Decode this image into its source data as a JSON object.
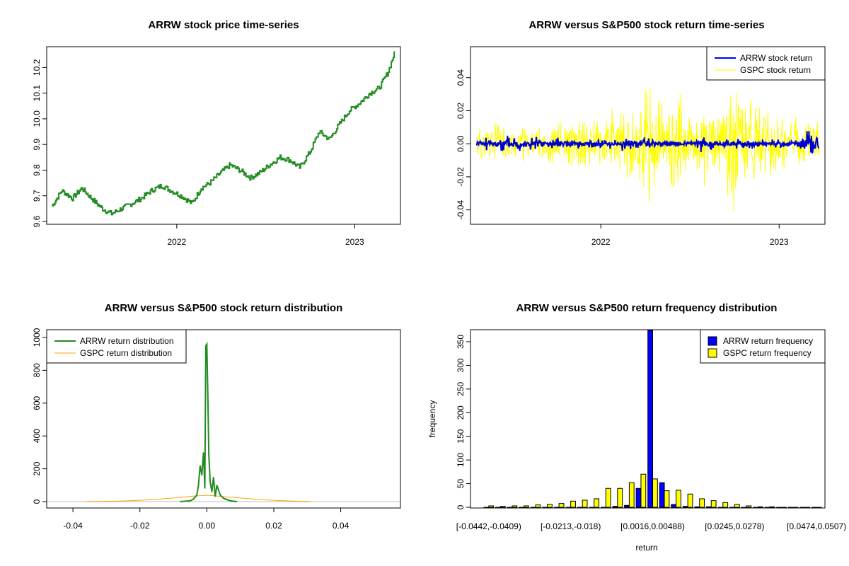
{
  "chart_data": [
    {
      "type": "line",
      "title": "ARRW stock price time-series",
      "xlabel": "",
      "ylabel": "",
      "x_ticks": [
        "2022",
        "2023"
      ],
      "y_ticks": [
        "9.6",
        "9.7",
        "9.8",
        "9.9",
        "10.0",
        "10.1",
        "10.2"
      ],
      "xlim": [
        "2021-04-15",
        "2023-03-30"
      ],
      "ylim": [
        9.6,
        10.27
      ],
      "color": "#228b22",
      "series": [
        {
          "name": "",
          "x": [
            "2021-04-20",
            "2021-05-10",
            "2021-06-01",
            "2021-06-20",
            "2021-07-10",
            "2021-08-01",
            "2021-08-20",
            "2021-09-10",
            "2021-10-01",
            "2021-10-20",
            "2021-11-10",
            "2021-12-01",
            "2021-12-20",
            "2022-01-10",
            "2022-02-01",
            "2022-02-20",
            "2022-03-10",
            "2022-04-01",
            "2022-04-20",
            "2022-05-10",
            "2022-06-01",
            "2022-06-20",
            "2022-07-10",
            "2022-08-01",
            "2022-08-20",
            "2022-09-10",
            "2022-10-01",
            "2022-10-20",
            "2022-11-10",
            "2022-12-01",
            "2022-12-20",
            "2023-01-10",
            "2023-02-01",
            "2023-02-20",
            "2023-03-10",
            "2023-03-24"
          ],
          "y": [
            9.66,
            9.72,
            9.69,
            9.73,
            9.69,
            9.65,
            9.63,
            9.65,
            9.67,
            9.69,
            9.72,
            9.74,
            9.72,
            9.7,
            9.67,
            9.73,
            9.75,
            9.79,
            9.82,
            9.8,
            9.77,
            9.79,
            9.82,
            9.85,
            9.84,
            9.81,
            9.87,
            9.95,
            9.92,
            9.98,
            10.03,
            10.06,
            10.1,
            10.12,
            10.18,
            10.26
          ]
        }
      ]
    },
    {
      "type": "line",
      "title": "ARRW versus S&P500 stock return time-series",
      "xlabel": "",
      "ylabel": "",
      "x_ticks": [
        "2022",
        "2023"
      ],
      "y_ticks": [
        "-0.04",
        "-0.02",
        "0.00",
        "0.02",
        "0.04"
      ],
      "xlim": [
        "2021-04-15",
        "2023-03-30"
      ],
      "ylim": [
        -0.047,
        0.057
      ],
      "legend": {
        "position": "top-right",
        "items": [
          {
            "label": "ARRW stock return",
            "color": "#0000ff"
          },
          {
            "label": "GSPC stock return",
            "color": "#ffff00"
          }
        ]
      },
      "series": [
        {
          "name": "ARRW stock return",
          "color": "#0000cd",
          "x": [
            "2021-05-01",
            "2021-06-01",
            "2021-07-01",
            "2021-08-01",
            "2021-09-01",
            "2021-10-01",
            "2021-11-01",
            "2021-12-01",
            "2022-01-01",
            "2022-02-01",
            "2022-03-01",
            "2022-04-01",
            "2022-05-01",
            "2022-06-01",
            "2022-07-01",
            "2022-08-01",
            "2022-09-01",
            "2022-10-01",
            "2022-11-01",
            "2022-12-01",
            "2023-01-01",
            "2023-02-01",
            "2023-03-01"
          ],
          "y": [
            0.004,
            -0.005,
            0.006,
            -0.005,
            0.005,
            -0.004,
            0.004,
            -0.003,
            0.003,
            -0.003,
            0.005,
            -0.004,
            0.003,
            -0.002,
            0.003,
            -0.005,
            0.003,
            -0.003,
            0.003,
            -0.002,
            0.003,
            -0.002,
            0.009
          ]
        },
        {
          "name": "GSPC stock return",
          "color": "#ffff00",
          "x": [
            "2021-05-01",
            "2021-06-01",
            "2021-07-01",
            "2021-08-01",
            "2021-09-01",
            "2021-10-01",
            "2021-11-01",
            "2021-12-01",
            "2022-01-01",
            "2022-02-01",
            "2022-03-01",
            "2022-04-01",
            "2022-05-01",
            "2022-06-01",
            "2022-07-01",
            "2022-08-01",
            "2022-09-01",
            "2022-10-01",
            "2022-11-01",
            "2022-12-01",
            "2023-01-01",
            "2023-02-01",
            "2023-03-01"
          ],
          "y": [
            0.014,
            -0.02,
            0.011,
            -0.012,
            0.01,
            -0.017,
            0.015,
            -0.022,
            0.02,
            -0.025,
            0.024,
            -0.04,
            0.03,
            -0.042,
            0.022,
            -0.03,
            0.028,
            -0.044,
            0.037,
            -0.025,
            0.022,
            -0.018,
            0.016
          ]
        }
      ]
    },
    {
      "type": "line",
      "title": "ARRW versus S&P500 stock return distribution",
      "xlabel": "",
      "ylabel": "",
      "x_ticks": [
        "-0.04",
        "-0.02",
        "0.00",
        "0.02",
        "0.04"
      ],
      "y_ticks": [
        "0",
        "200",
        "400",
        "600",
        "800",
        "1000"
      ],
      "xlim": [
        -0.047,
        0.057
      ],
      "ylim": [
        -30,
        1020
      ],
      "legend": {
        "position": "top-left",
        "items": [
          {
            "label": "ARRW return distribution",
            "color": "#228b22"
          },
          {
            "label": "GSPC return distribution",
            "color": "#ffa500"
          }
        ]
      },
      "series": [
        {
          "name": "ARRW return distribution",
          "color": "#228b22",
          "x": [
            -0.008,
            -0.005,
            -0.004,
            -0.003,
            -0.0025,
            -0.002,
            -0.0015,
            -0.001,
            -0.0006,
            -0.0003,
            0.0,
            0.0003,
            0.0006,
            0.001,
            0.0015,
            0.002,
            0.0025,
            0.003,
            0.004,
            0.005,
            0.007,
            0.009
          ],
          "y": [
            0,
            5,
            15,
            40,
            100,
            220,
            160,
            300,
            80,
            950,
            960,
            650,
            280,
            120,
            60,
            150,
            30,
            100,
            40,
            20,
            5,
            0
          ]
        },
        {
          "name": "GSPC return distribution",
          "color": "#ffa500",
          "x": [
            -0.036,
            -0.03,
            -0.025,
            -0.02,
            -0.015,
            -0.01,
            -0.005,
            -0.002,
            0.0,
            0.002,
            0.005,
            0.01,
            0.015,
            0.02,
            0.025,
            0.031
          ],
          "y": [
            1,
            2,
            4,
            8,
            14,
            22,
            32,
            36,
            38,
            36,
            30,
            22,
            14,
            8,
            4,
            1
          ]
        }
      ]
    },
    {
      "type": "bar",
      "title": "ARRW versus S&P500 return frequency distribution",
      "xlabel": "return",
      "ylabel": "frequency",
      "ylim": [
        0,
        380
      ],
      "y_ticks": [
        "0",
        "50",
        "100",
        "150",
        "200",
        "250",
        "300",
        "350"
      ],
      "x_tick_labels": [
        "[-0.0442,-0.0409)",
        "[-0.0213,-0.018)",
        "[0.0016,0.00488)",
        "[0.0245,0.0278)",
        "[0.0474,0.0507)"
      ],
      "x_tick_bins": [
        0,
        7,
        14,
        21,
        28
      ],
      "legend": {
        "position": "top-right",
        "items": [
          {
            "label": "ARRW return frequency",
            "color": "#0000ff"
          },
          {
            "label": "GSPC return frequency",
            "color": "#ffff00"
          }
        ]
      },
      "bin_count": 29,
      "series": [
        {
          "name": "ARRW return frequency",
          "color": "#0000ff",
          "values": [
            0,
            0,
            0,
            0,
            0,
            0,
            0,
            0,
            0,
            0,
            0,
            2,
            4,
            40,
            380,
            52,
            6,
            2,
            1,
            1,
            0,
            0,
            0,
            0,
            0,
            0,
            0,
            0,
            0
          ]
        },
        {
          "name": "GSPC return frequency",
          "color": "#ffff00",
          "values": [
            3,
            2,
            3,
            3,
            5,
            6,
            8,
            13,
            15,
            18,
            40,
            40,
            52,
            70,
            60,
            35,
            36,
            28,
            18,
            14,
            10,
            6,
            3,
            1,
            1,
            0,
            0,
            0,
            0
          ]
        }
      ]
    }
  ]
}
